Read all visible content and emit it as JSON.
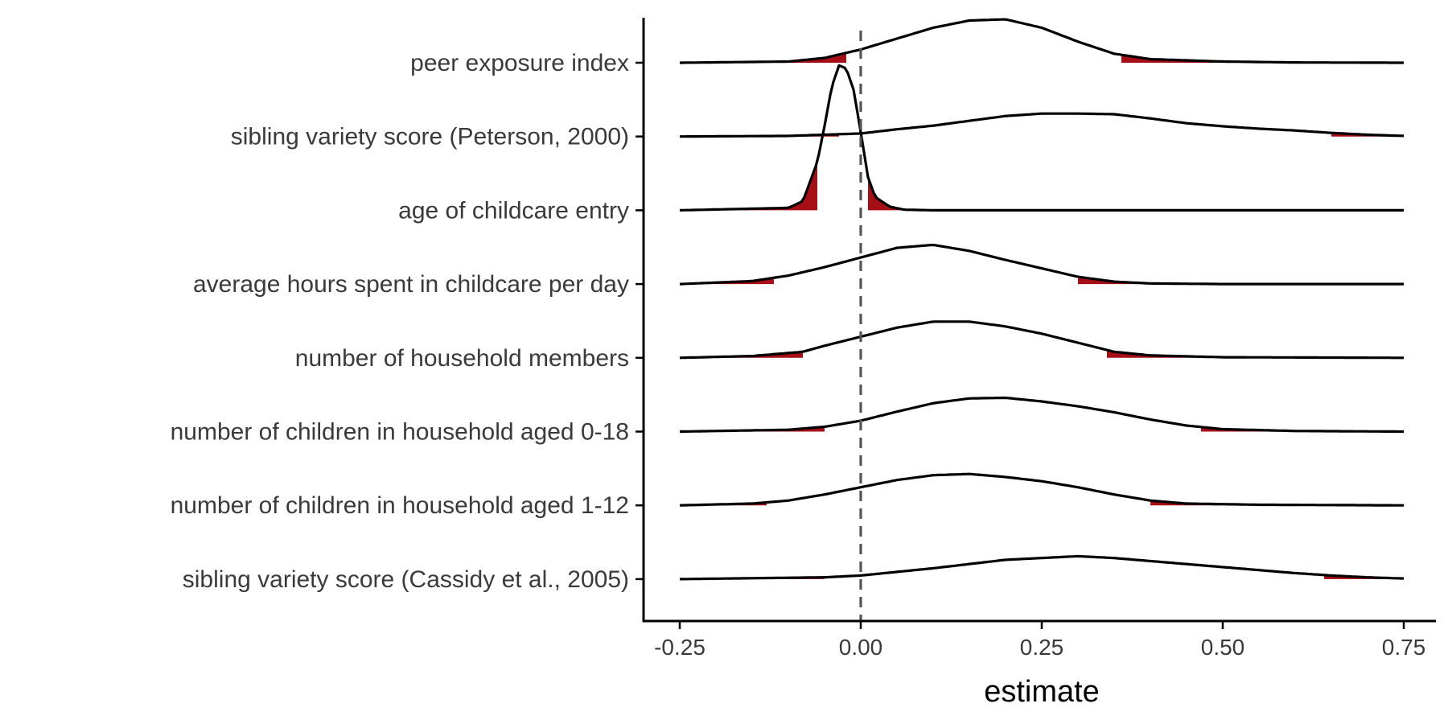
{
  "chart_data": {
    "type": "ridgeline",
    "xlabel": "estimate",
    "ylabel": "",
    "xlim": [
      -0.25,
      0.75
    ],
    "x_ticks": [
      -0.25,
      0.0,
      0.25,
      0.5,
      0.75
    ],
    "x_tick_labels": [
      "-0.25",
      "0.00",
      "0.25",
      "0.50",
      "0.75"
    ],
    "reference_line_x": 0,
    "grid": false,
    "legend": "none",
    "colors": {
      "curve": "#000000",
      "tail_fill": "#a50f15",
      "reference_line": "#555555",
      "axis": "#000000"
    },
    "categories": [
      "peer exposure index",
      "sibling variety score (Peterson, 2000)",
      "age of childcare entry",
      "average hours spent in childcare per day",
      "number of household members",
      "number of children in household aged 0-18",
      "number of children in household aged 1-12",
      "sibling variety score (Cassidy et al., 2005)"
    ],
    "series": [
      {
        "category": "peer exposure index",
        "density": [
          [
            -0.25,
            0
          ],
          [
            -0.1,
            0.02
          ],
          [
            -0.05,
            0.08
          ],
          [
            0,
            0.22
          ],
          [
            0.05,
            0.4
          ],
          [
            0.1,
            0.58
          ],
          [
            0.15,
            0.7
          ],
          [
            0.2,
            0.72
          ],
          [
            0.25,
            0.58
          ],
          [
            0.3,
            0.35
          ],
          [
            0.35,
            0.15
          ],
          [
            0.4,
            0.06
          ],
          [
            0.5,
            0.02
          ],
          [
            0.6,
            0.005
          ],
          [
            0.75,
            0
          ]
        ],
        "tails": [
          -0.02,
          0.36
        ]
      },
      {
        "category": "sibling variety score (Peterson, 2000)",
        "density": [
          [
            -0.25,
            0
          ],
          [
            -0.1,
            0.01
          ],
          [
            0,
            0.05
          ],
          [
            0.05,
            0.12
          ],
          [
            0.1,
            0.18
          ],
          [
            0.15,
            0.26
          ],
          [
            0.2,
            0.34
          ],
          [
            0.25,
            0.38
          ],
          [
            0.3,
            0.38
          ],
          [
            0.35,
            0.37
          ],
          [
            0.4,
            0.3
          ],
          [
            0.45,
            0.22
          ],
          [
            0.5,
            0.17
          ],
          [
            0.55,
            0.13
          ],
          [
            0.6,
            0.1
          ],
          [
            0.65,
            0.06
          ],
          [
            0.7,
            0.03
          ],
          [
            0.75,
            0.01
          ]
        ],
        "tails": [
          -0.03,
          0.65
        ]
      },
      {
        "category": "age of childcare entry",
        "density": [
          [
            -0.25,
            0
          ],
          [
            -0.1,
            0.04
          ],
          [
            -0.08,
            0.15
          ],
          [
            -0.06,
            0.8
          ],
          [
            -0.05,
            1.4
          ],
          [
            -0.04,
            2.05
          ],
          [
            -0.03,
            2.4
          ],
          [
            -0.02,
            2.35
          ],
          [
            -0.01,
            2.0
          ],
          [
            0,
            1.3
          ],
          [
            0.01,
            0.55
          ],
          [
            0.02,
            0.22
          ],
          [
            0.04,
            0.06
          ],
          [
            0.06,
            0.01
          ],
          [
            0.1,
            0
          ],
          [
            0.75,
            0
          ]
        ],
        "tails": [
          -0.06,
          0.01
        ]
      },
      {
        "category": "average hours spent in childcare per day",
        "density": [
          [
            -0.25,
            0
          ],
          [
            -0.15,
            0.05
          ],
          [
            -0.1,
            0.14
          ],
          [
            -0.05,
            0.28
          ],
          [
            0,
            0.44
          ],
          [
            0.05,
            0.6
          ],
          [
            0.1,
            0.65
          ],
          [
            0.15,
            0.55
          ],
          [
            0.2,
            0.4
          ],
          [
            0.25,
            0.26
          ],
          [
            0.3,
            0.12
          ],
          [
            0.35,
            0.04
          ],
          [
            0.4,
            0.01
          ],
          [
            0.5,
            0
          ],
          [
            0.75,
            0
          ]
        ],
        "tails": [
          -0.12,
          0.3
        ]
      },
      {
        "category": "number of household members",
        "density": [
          [
            -0.25,
            0
          ],
          [
            -0.15,
            0.03
          ],
          [
            -0.08,
            0.1
          ],
          [
            -0.05,
            0.2
          ],
          [
            0,
            0.35
          ],
          [
            0.05,
            0.5
          ],
          [
            0.1,
            0.6
          ],
          [
            0.15,
            0.6
          ],
          [
            0.2,
            0.52
          ],
          [
            0.25,
            0.4
          ],
          [
            0.3,
            0.25
          ],
          [
            0.35,
            0.1
          ],
          [
            0.4,
            0.04
          ],
          [
            0.5,
            0.01
          ],
          [
            0.75,
            0
          ]
        ],
        "tails": [
          -0.08,
          0.34
        ]
      },
      {
        "category": "number of children in household aged 0-18",
        "density": [
          [
            -0.25,
            0
          ],
          [
            -0.1,
            0.03
          ],
          [
            -0.05,
            0.08
          ],
          [
            0,
            0.18
          ],
          [
            0.05,
            0.33
          ],
          [
            0.1,
            0.47
          ],
          [
            0.15,
            0.55
          ],
          [
            0.2,
            0.56
          ],
          [
            0.25,
            0.5
          ],
          [
            0.3,
            0.42
          ],
          [
            0.35,
            0.32
          ],
          [
            0.4,
            0.2
          ],
          [
            0.45,
            0.1
          ],
          [
            0.5,
            0.04
          ],
          [
            0.6,
            0.01
          ],
          [
            0.75,
            0
          ]
        ],
        "tails": [
          -0.05,
          0.47
        ]
      },
      {
        "category": "number of children in household aged 1-12",
        "density": [
          [
            -0.25,
            0
          ],
          [
            -0.15,
            0.03
          ],
          [
            -0.1,
            0.08
          ],
          [
            -0.05,
            0.18
          ],
          [
            0,
            0.3
          ],
          [
            0.05,
            0.42
          ],
          [
            0.1,
            0.5
          ],
          [
            0.15,
            0.52
          ],
          [
            0.2,
            0.47
          ],
          [
            0.25,
            0.4
          ],
          [
            0.3,
            0.3
          ],
          [
            0.35,
            0.18
          ],
          [
            0.4,
            0.08
          ],
          [
            0.45,
            0.03
          ],
          [
            0.55,
            0.01
          ],
          [
            0.75,
            0
          ]
        ],
        "tails": [
          -0.13,
          0.4
        ]
      },
      {
        "category": "sibling variety score (Cassidy et al., 2005)",
        "density": [
          [
            -0.25,
            0
          ],
          [
            -0.05,
            0.03
          ],
          [
            0,
            0.06
          ],
          [
            0.05,
            0.12
          ],
          [
            0.1,
            0.18
          ],
          [
            0.15,
            0.25
          ],
          [
            0.2,
            0.32
          ],
          [
            0.25,
            0.35
          ],
          [
            0.3,
            0.38
          ],
          [
            0.35,
            0.35
          ],
          [
            0.4,
            0.3
          ],
          [
            0.45,
            0.25
          ],
          [
            0.5,
            0.2
          ],
          [
            0.55,
            0.15
          ],
          [
            0.6,
            0.1
          ],
          [
            0.65,
            0.06
          ],
          [
            0.7,
            0.03
          ],
          [
            0.75,
            0.01
          ]
        ],
        "tails": [
          -0.05,
          0.64
        ]
      }
    ]
  }
}
